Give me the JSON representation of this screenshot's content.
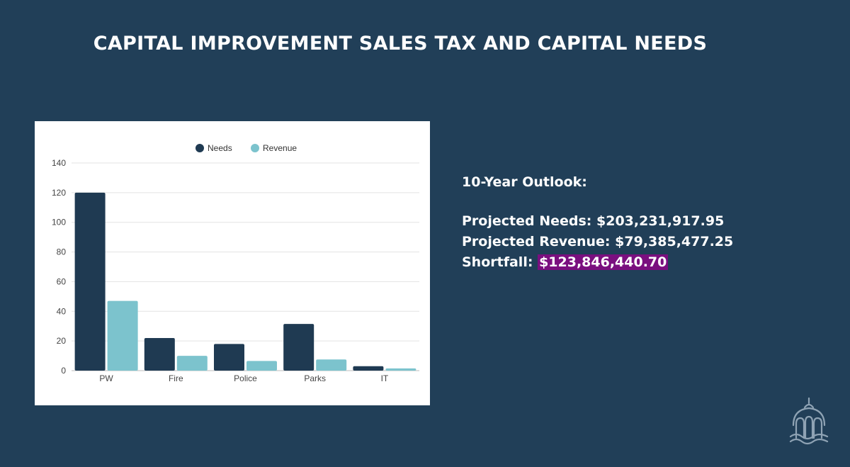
{
  "slide": {
    "title": "CAPITAL IMPROVEMENT SALES TAX AND CAPITAL NEEDS"
  },
  "outlook": {
    "heading": "10-Year Outlook:",
    "needs_label": "Projected Needs:",
    "needs_value": "$203,231,917.95",
    "revenue_label": "Projected Revenue:",
    "revenue_value": "$79,385,477.25",
    "shortfall_label": "Shortfall:",
    "shortfall_value": "$123,846,440.70",
    "highlight_color": "#7a0f7f"
  },
  "logo": {
    "icon": "capitol-dome-icon"
  },
  "chart_data": {
    "type": "bar",
    "categories": [
      "PW",
      "Fire",
      "Police",
      "Parks",
      "IT"
    ],
    "series": [
      {
        "name": "Needs",
        "color": "#1f3a52",
        "values": [
          120,
          22,
          18,
          31.5,
          3
        ]
      },
      {
        "name": "Revenue",
        "color": "#7cc3cd",
        "values": [
          47,
          10,
          6.5,
          7.5,
          1.5
        ]
      }
    ],
    "ylim": [
      0,
      140
    ],
    "yticks": [
      0,
      20,
      40,
      60,
      80,
      100,
      120,
      140
    ],
    "grid": true,
    "legend_position": "top-center"
  }
}
